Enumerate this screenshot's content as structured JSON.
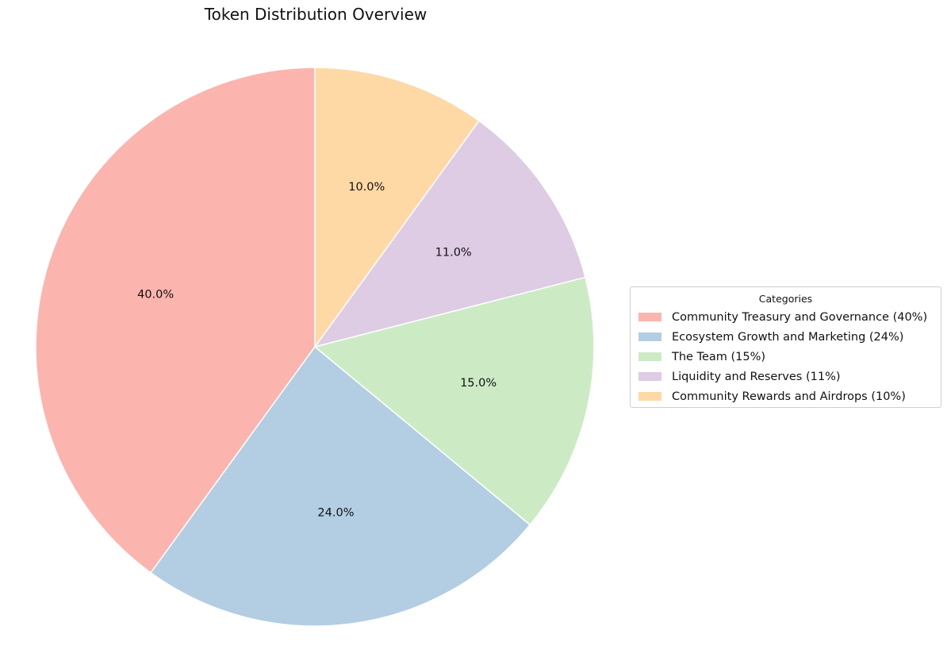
{
  "chart_data": {
    "type": "pie",
    "title": "Token Distribution Overview",
    "categories": [
      "Community Treasury and Governance (40%)",
      "Ecosystem Growth and Marketing (24%)",
      "The Team (15%)",
      "Liquidity and Reserves (11%)",
      "Community Rewards and Airdrops (10%)"
    ],
    "values": [
      40,
      24,
      15,
      11,
      10
    ],
    "slice_labels": [
      "40.0%",
      "24.0%",
      "15.0%",
      "11.0%",
      "10.0%"
    ],
    "colors": [
      "#fbb4ae",
      "#b3cde3",
      "#ccebc5",
      "#decbe4",
      "#fed9a6"
    ],
    "start_angle_deg": 90,
    "direction": "counterclockwise",
    "legend": {
      "title": "Categories",
      "placement": "center-right"
    }
  }
}
